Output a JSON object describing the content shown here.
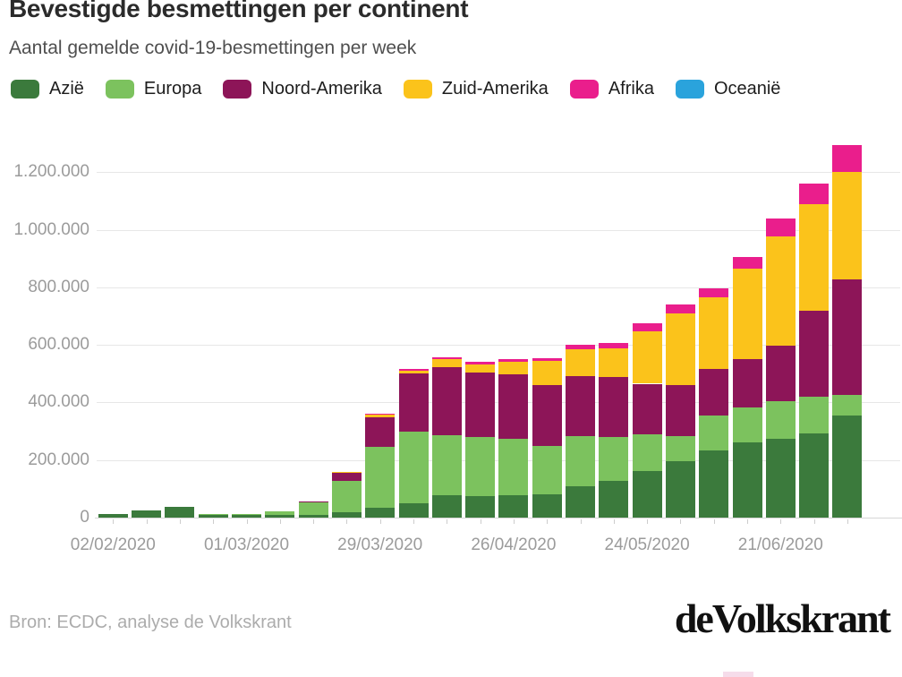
{
  "header": {
    "title": "Bevestigde besmettingen per continent",
    "subtitle": "Aantal gemelde covid-19-besmettingen per week"
  },
  "footer": {
    "source": "Bron: ECDC, analyse de Volkskrant",
    "logo": "deVolkskrant"
  },
  "colors": {
    "background": "#ffffff",
    "gridline": "#e7e7e7",
    "axis_text": "#9b9b9b",
    "title_text": "#2b2b2b",
    "subtitle_text": "#4f4f4f",
    "source_text": "#acacac"
  },
  "chart_data": {
    "type": "bar",
    "stacked": true,
    "title": "Bevestigde besmettingen per continent",
    "subtitle": "Aantal gemelde covid-19-besmettingen per week",
    "xlabel": "",
    "ylabel": "",
    "grid": true,
    "legend_position": "top",
    "ylim": [
      0,
      1300000
    ],
    "y_tick_values": [
      0,
      200000,
      400000,
      600000,
      800000,
      1000000,
      1200000
    ],
    "y_tick_labels": [
      "0",
      "200.000",
      "400.000",
      "600.000",
      "800.000",
      "1.000.000",
      "1.200.000"
    ],
    "categories": [
      "02/02/2020",
      "09/02/2020",
      "16/02/2020",
      "23/02/2020",
      "01/03/2020",
      "08/03/2020",
      "15/03/2020",
      "22/03/2020",
      "29/03/2020",
      "05/04/2020",
      "12/04/2020",
      "19/04/2020",
      "26/04/2020",
      "03/05/2020",
      "10/05/2020",
      "17/05/2020",
      "24/05/2020",
      "31/05/2020",
      "07/06/2020",
      "14/06/2020",
      "21/06/2020",
      "28/06/2020",
      "05/07/2020"
    ],
    "x_axis_labels_shown": [
      "02/02/2020",
      "01/03/2020",
      "29/03/2020",
      "26/04/2020",
      "24/05/2020",
      "21/06/2020"
    ],
    "series": [
      {
        "name": "Azië",
        "color": "#3b7a3c",
        "values": [
          12000,
          25000,
          36000,
          10000,
          9000,
          10000,
          10000,
          18000,
          33000,
          51000,
          77000,
          74000,
          79000,
          82000,
          108000,
          128000,
          162000,
          196000,
          234000,
          261000,
          274000,
          291000,
          354000
        ]
      },
      {
        "name": "Europa",
        "color": "#7cc25e",
        "values": [
          300,
          400,
          600,
          1500,
          2500,
          12000,
          43000,
          109000,
          212000,
          249000,
          209000,
          205000,
          195000,
          166000,
          176000,
          153000,
          127000,
          88000,
          122000,
          121000,
          130000,
          129000,
          72000
        ]
      },
      {
        "name": "Noord-Amerika",
        "color": "#8d1558",
        "values": [
          100,
          100,
          100,
          200,
          300,
          700,
          3000,
          31000,
          104000,
          200000,
          236000,
          225000,
          223000,
          212000,
          207000,
          207000,
          176000,
          176000,
          161000,
          170000,
          193000,
          298000,
          401000
        ]
      },
      {
        "name": "Zuid-Amerika",
        "color": "#fbc31b",
        "values": [
          0,
          0,
          0,
          0,
          100,
          200,
          500,
          2000,
          8000,
          11000,
          29000,
          29000,
          45000,
          83000,
          93000,
          100000,
          181000,
          249000,
          249000,
          313000,
          380000,
          370000,
          373000
        ]
      },
      {
        "name": "Afrika",
        "color": "#ea1e8c",
        "values": [
          0,
          0,
          0,
          0,
          0,
          100,
          300,
          1000,
          3000,
          4000,
          7000,
          8000,
          10000,
          12000,
          15000,
          18000,
          29000,
          31000,
          31000,
          40000,
          61000,
          72000,
          93000
        ]
      },
      {
        "name": "Oceanië",
        "color": "#2aa3dc",
        "values": [
          0,
          0,
          0,
          0,
          100,
          100,
          300,
          700,
          1000,
          700,
          400,
          300,
          200,
          200,
          200,
          200,
          200,
          300,
          300,
          400,
          500,
          600,
          700
        ]
      }
    ]
  }
}
